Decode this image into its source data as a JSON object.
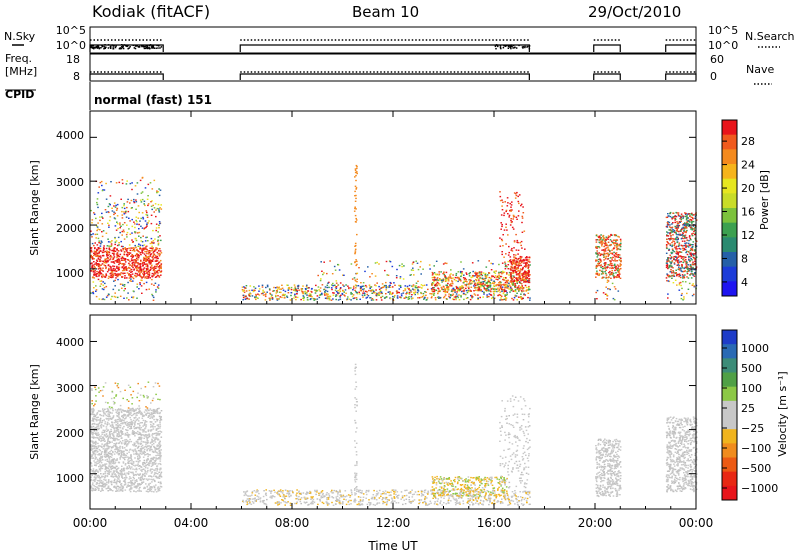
{
  "header": {
    "station": "Kodiak (fitACF)",
    "beam": "Beam 10",
    "date": "29/Oct/2010"
  },
  "top_panels": {
    "nsky": {
      "label": "N.Sky",
      "ticks": [
        "10^5",
        "10^0"
      ]
    },
    "nsearch": {
      "label": "N.Search",
      "ticks": [
        "10^5",
        "10^0"
      ]
    },
    "freq": {
      "label_line1": "Freq.",
      "label_line2": "[MHz]",
      "ticks": [
        "18",
        "8"
      ]
    },
    "nave": {
      "label": "Nave",
      "ticks": [
        "60",
        "0"
      ]
    },
    "cpid": {
      "label": "CPID",
      "value": "normal (fast) 151"
    }
  },
  "chart_data": [
    {
      "type": "heatmap",
      "name": "power",
      "ylabel": "Slant Range [km]",
      "xlabel": "",
      "yticks": [
        "4000",
        "3000",
        "2000",
        "1000"
      ],
      "ylim": [
        200,
        4600
      ],
      "xlim": [
        0,
        24
      ],
      "colorbar": {
        "label": "Power [dB]",
        "ticks": [
          "28",
          "24",
          "20",
          "16",
          "12",
          "8",
          "4"
        ],
        "colors": [
          "#e8141b",
          "#f05a1e",
          "#f48a1e",
          "#f6b41c",
          "#e6e620",
          "#c8dc28",
          "#7cc23c",
          "#3ca050",
          "#2a8a70",
          "#2560a8",
          "#1c3cd8",
          "#1e14f0"
        ]
      },
      "scatter_regions": [
        {
          "t": [
            0.0,
            2.8
          ],
          "range": [
            600,
            2600
          ],
          "level": "high"
        },
        {
          "t": [
            6.0,
            17.4
          ],
          "range": [
            250,
            650
          ],
          "level": "mixed"
        },
        {
          "t": [
            13.5,
            17.4
          ],
          "range": [
            500,
            900
          ],
          "level": "high"
        },
        {
          "t": [
            16.0,
            17.0
          ],
          "range": [
            900,
            2800
          ],
          "level": "high"
        },
        {
          "t": [
            20.0,
            21.0
          ],
          "range": [
            800,
            1800
          ],
          "level": "high"
        },
        {
          "t": [
            22.8,
            24.0
          ],
          "range": [
            700,
            2300
          ],
          "level": "high"
        }
      ]
    },
    {
      "type": "heatmap",
      "name": "velocity",
      "ylabel": "Slant Range [km]",
      "xlabel": "Time UT",
      "yticks": [
        "4000",
        "3000",
        "2000",
        "1000"
      ],
      "ylim": [
        200,
        4600
      ],
      "xlim": [
        0,
        24
      ],
      "xticks": [
        "00:00",
        "04:00",
        "08:00",
        "12:00",
        "16:00",
        "20:00",
        "00:00"
      ],
      "colorbar": {
        "label": "Velocity [m s⁻¹]",
        "ticks": [
          "1000",
          "500",
          "100",
          "25",
          "−25",
          "−100",
          "−500",
          "−1000"
        ],
        "colors": [
          "#1e3cc8",
          "#2a6ab4",
          "#3c8c78",
          "#50a046",
          "#8cc846",
          "#c8c8c8",
          "#c8c8c8",
          "#f0b41e",
          "#f08c1e",
          "#ec5a14",
          "#e82814",
          "#e8141b"
        ]
      }
    }
  ]
}
